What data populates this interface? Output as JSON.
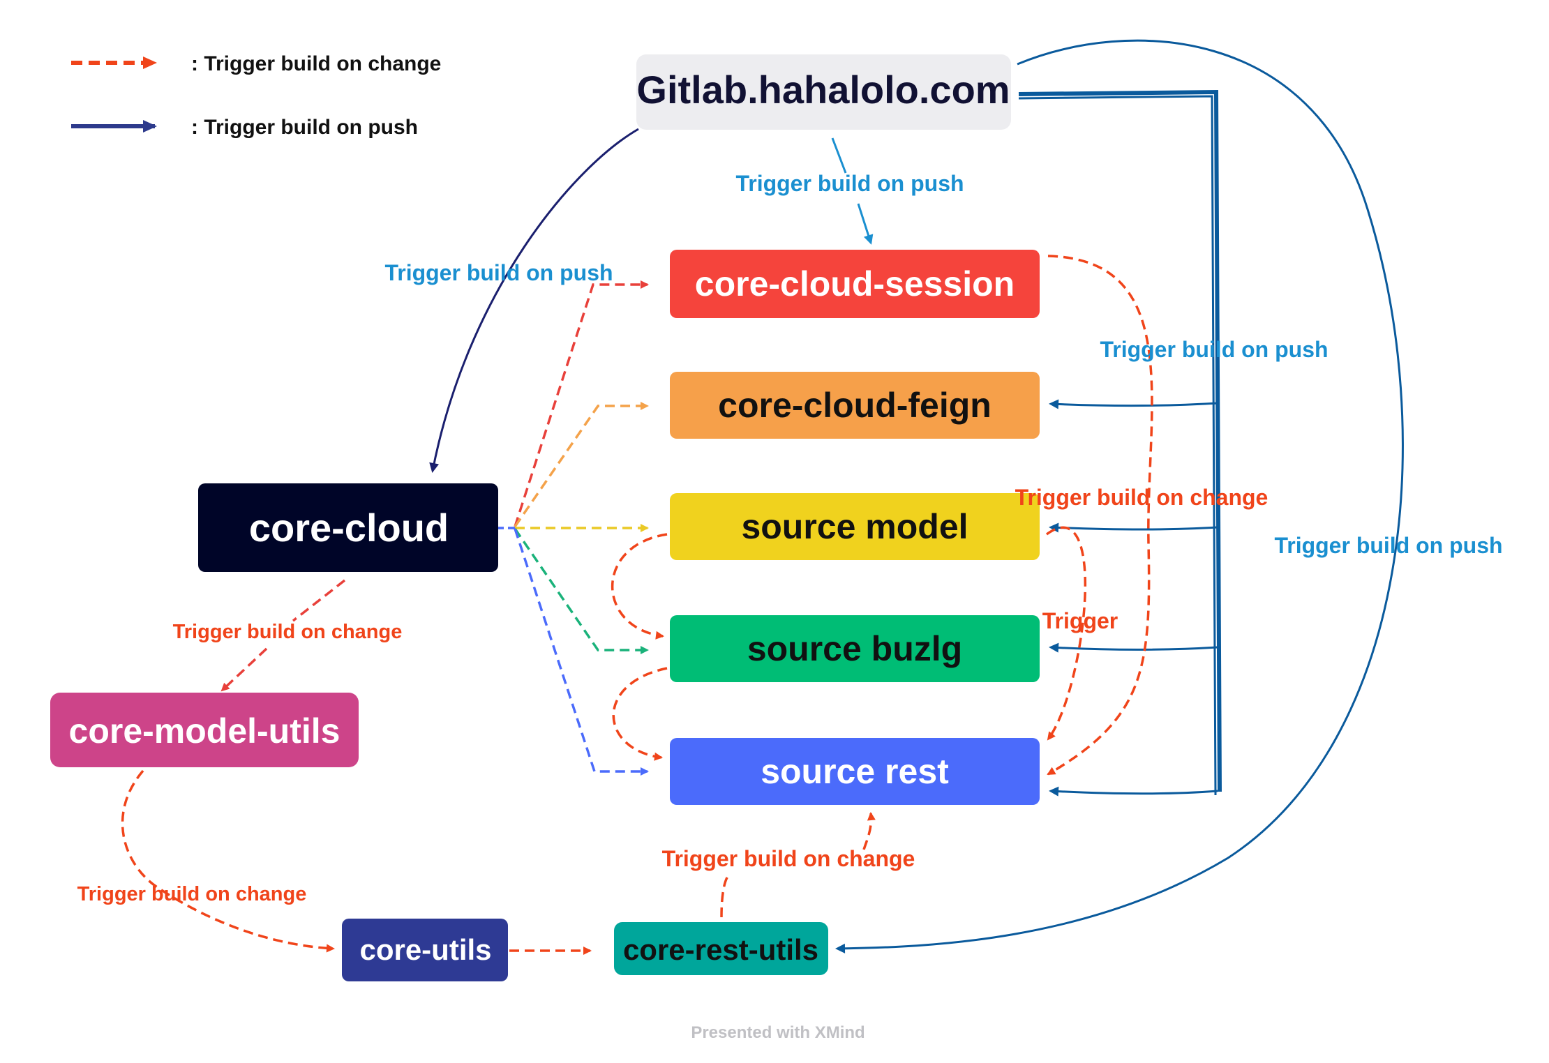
{
  "legend": {
    "items": [
      {
        "text": ": Trigger build on change",
        "style": "dashed",
        "color": "#f0441a"
      },
      {
        "text": ": Trigger build on push",
        "style": "solid",
        "color": "#2d3a8c"
      }
    ]
  },
  "nodes": {
    "gitlab": {
      "label": "Gitlab.hahalolo.com",
      "fill": "#ededf0",
      "text_color": "#111133"
    },
    "core_cloud_session": {
      "label": "core-cloud-session",
      "fill": "#f5443c",
      "text_color": "#ffffff"
    },
    "core_cloud_feign": {
      "label": "core-cloud-feign",
      "fill": "#f6a04a",
      "text_color": "#111111"
    },
    "source_model": {
      "label": "source model",
      "fill": "#f0d21e",
      "text_color": "#111111"
    },
    "source_buzlg": {
      "label": "source buzlg",
      "fill": "#00bd75",
      "text_color": "#111111"
    },
    "source_rest": {
      "label": "source rest",
      "fill": "#4b6bfb",
      "text_color": "#ffffff"
    },
    "core_cloud": {
      "label": "core-cloud",
      "fill": "#000528",
      "text_color": "#ffffff"
    },
    "core_model_utils": {
      "label": "core-model-utils",
      "fill": "#cd4489",
      "text_color": "#ffffff"
    },
    "core_utils": {
      "label": "core-utils",
      "fill": "#2e3a94",
      "text_color": "#ffffff"
    },
    "core_rest_utils": {
      "label": "core-rest-utils",
      "fill": "#00a69b",
      "text_color": "#111111"
    }
  },
  "edge_labels": {
    "gitlab_to_session": "Trigger build on push",
    "gitlab_to_core_cloud": "Trigger build on push",
    "gitlab_to_sources": "Trigger build on push",
    "gitlab_to_rest_utils": "Trigger build on push",
    "session_to_rest": "Trigger build on change",
    "model_to_rest": "Trigger",
    "core_cloud_to_model_utils": "Trigger build on change",
    "model_utils_to_core_utils": "Trigger build on change",
    "rest_utils_to_source_rest": "Trigger build on change"
  },
  "colors": {
    "push_blue": "#0a5a9c",
    "push_navy": "#1a1f6e",
    "label_blue": "#1a8fd0",
    "change_orange": "#f0441a"
  },
  "footer": "Presented with XMind"
}
